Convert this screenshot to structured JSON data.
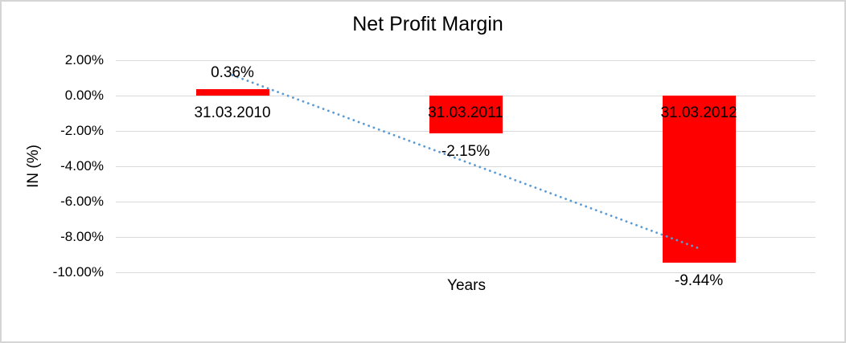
{
  "window": {
    "background": "#ffffff",
    "border_color": "#d5d5d5"
  },
  "chart_data": {
    "type": "bar",
    "title": "Net Profit Margin",
    "xlabel": "Years",
    "ylabel": "IN (%)",
    "categories": [
      "31.03.2010",
      "31.03.2011",
      "31.03.2012"
    ],
    "values": [
      0.36,
      -2.15,
      -9.44
    ],
    "data_labels": [
      "0.36%",
      "-2.15%",
      "-9.44%"
    ],
    "yticks": [
      {
        "value": 2,
        "label": "2.00%"
      },
      {
        "value": 0,
        "label": "0.00%"
      },
      {
        "value": -2,
        "label": "-2.00%"
      },
      {
        "value": -4,
        "label": "-4.00%"
      },
      {
        "value": -6,
        "label": "-6.00%"
      },
      {
        "value": -8,
        "label": "-8.00%"
      },
      {
        "value": -10,
        "label": "-10.00%"
      }
    ],
    "ylim": [
      -10,
      2
    ],
    "grid": true,
    "legend_position": "none",
    "bar_color": "#ff0000",
    "gridline_color": "#d9d9d9",
    "text_color": "#000000",
    "trendline": {
      "type": "linear",
      "style": "dotted",
      "color": "#5b9bd5"
    }
  }
}
